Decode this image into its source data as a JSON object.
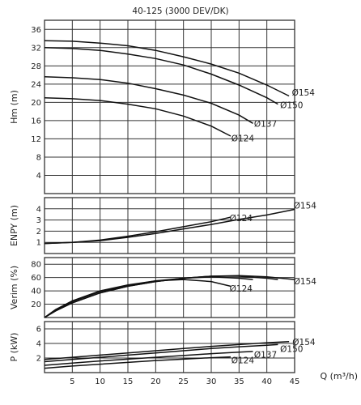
{
  "title": "40-125 (3000 DEV/DK)",
  "chart_data": {
    "type": "line",
    "title": "40-125 (3000 DEV/DK)",
    "xlabel": "Q (m³/h)",
    "xlim": [
      0,
      45
    ],
    "xticks": [
      5,
      10,
      15,
      20,
      25,
      30,
      35,
      40,
      45
    ],
    "grid": true,
    "panels": [
      {
        "id": "hm",
        "ylabel": "Hm (m)",
        "ylim": [
          0,
          38
        ],
        "yticks": [
          4,
          8,
          12,
          16,
          20,
          24,
          28,
          32,
          36
        ],
        "series": [
          {
            "name": "Ø154",
            "x": [
              0,
              5,
              10,
              15,
              20,
              25,
              30,
              35,
              40,
              44
            ],
            "y": [
              33.5,
              33.4,
              33.0,
              32.4,
              31.4,
              30.0,
              28.4,
              26.4,
              23.8,
              21.4
            ]
          },
          {
            "name": "Ø150",
            "x": [
              0,
              5,
              10,
              15,
              20,
              25,
              30,
              35,
              40,
              42
            ],
            "y": [
              32.0,
              31.8,
              31.4,
              30.6,
              29.6,
              28.2,
              26.2,
              23.8,
              21.0,
              19.6
            ]
          },
          {
            "name": "Ø137",
            "x": [
              0,
              5,
              10,
              15,
              20,
              25,
              30,
              35,
              37.5
            ],
            "y": [
              25.6,
              25.4,
              25.0,
              24.2,
              23.0,
              21.6,
              19.8,
              17.2,
              15.4
            ]
          },
          {
            "name": "Ø124",
            "x": [
              0,
              5,
              10,
              15,
              20,
              25,
              30,
              33.5
            ],
            "y": [
              21.0,
              20.8,
              20.4,
              19.6,
              18.6,
              17.0,
              14.8,
              12.6
            ]
          }
        ],
        "labels": [
          {
            "text": "Ø154",
            "x": 44.5,
            "y": 22.2
          },
          {
            "text": "Ø150",
            "x": 42.4,
            "y": 19.4
          },
          {
            "text": "Ø137",
            "x": 37.7,
            "y": 15.4
          },
          {
            "text": "Ø124",
            "x": 33.6,
            "y": 12.2
          }
        ]
      },
      {
        "id": "enpy",
        "ylabel": "ENPY (m)",
        "ylim": [
          0,
          5
        ],
        "yticks": [
          1,
          2,
          3,
          4
        ],
        "series": [
          {
            "name": "Ø154",
            "x": [
              0,
              5,
              10,
              15,
              20,
              25,
              30,
              35,
              40,
              45
            ],
            "y": [
              0.9,
              1.0,
              1.15,
              1.45,
              1.8,
              2.2,
              2.6,
              3.05,
              3.45,
              3.95
            ]
          },
          {
            "name": "Ø124",
            "x": [
              0,
              5,
              10,
              15,
              20,
              25,
              30,
              33.5
            ],
            "y": [
              0.9,
              1.0,
              1.2,
              1.55,
              1.95,
              2.4,
              2.85,
              3.25
            ]
          }
        ],
        "labels": [
          {
            "text": "Ø154",
            "x": 44.8,
            "y": 4.3
          },
          {
            "text": "Ø124",
            "x": 33.3,
            "y": 3.2
          }
        ]
      },
      {
        "id": "verim",
        "ylabel": "Verim (%)",
        "ylim": [
          0,
          90
        ],
        "yticks": [
          20,
          40,
          60,
          80
        ],
        "series": [
          {
            "name": "Ø154",
            "x": [
              0,
              2,
              5,
              10,
              15,
              20,
              25,
              30,
              35,
              40,
              45
            ],
            "y": [
              0,
              10,
              22,
              37,
              47,
              54,
              59,
              62,
              63,
              61,
              57
            ]
          },
          {
            "name": "Ø150",
            "x": [
              0,
              2,
              5,
              10,
              15,
              20,
              25,
              30,
              35,
              40,
              42
            ],
            "y": [
              0,
              10,
              22,
              37,
              47,
              54,
              59,
              62,
              62,
              59,
              57
            ]
          },
          {
            "name": "Ø137",
            "x": [
              0,
              2,
              5,
              10,
              15,
              20,
              25,
              30,
              35,
              37.5
            ],
            "y": [
              0,
              11,
              24,
              39,
              48,
              55,
              59,
              61,
              59,
              57
            ]
          },
          {
            "name": "Ø124",
            "x": [
              0,
              2,
              5,
              10,
              15,
              20,
              25,
              30,
              33.5
            ],
            "y": [
              0,
              12,
              25,
              40,
              49,
              55,
              57,
              54,
              47
            ]
          }
        ],
        "labels": [
          {
            "text": "Ø154",
            "x": 44.8,
            "y": 55
          },
          {
            "text": "Ø124",
            "x": 33.3,
            "y": 44
          }
        ]
      },
      {
        "id": "power",
        "ylabel": "P (kW)",
        "ylim": [
          0,
          7
        ],
        "yticks": [
          2,
          4,
          6
        ],
        "series": [
          {
            "name": "Ø154",
            "x": [
              0,
              5,
              10,
              15,
              20,
              25,
              30,
              35,
              40,
              44
            ],
            "y": [
              1.8,
              2.1,
              2.4,
              2.7,
              3.0,
              3.3,
              3.6,
              3.85,
              4.1,
              4.25
            ]
          },
          {
            "name": "Ø150",
            "x": [
              0,
              5,
              10,
              15,
              20,
              25,
              30,
              35,
              40,
              42
            ],
            "y": [
              1.5,
              1.8,
              2.1,
              2.4,
              2.7,
              3.0,
              3.3,
              3.55,
              3.75,
              3.85
            ]
          },
          {
            "name": "Ø137",
            "x": [
              0,
              5,
              10,
              15,
              20,
              25,
              30,
              35,
              37.5
            ],
            "y": [
              1.0,
              1.3,
              1.6,
              1.85,
              2.1,
              2.35,
              2.6,
              2.8,
              2.9
            ]
          },
          {
            "name": "Ø124",
            "x": [
              0,
              5,
              10,
              15,
              20,
              25,
              30,
              33.5
            ],
            "y": [
              0.6,
              0.9,
              1.15,
              1.4,
              1.65,
              1.85,
              2.05,
              2.15
            ]
          }
        ],
        "labels": [
          {
            "text": "Ø154",
            "x": 44.6,
            "y": 4.25
          },
          {
            "text": "Ø150",
            "x": 42.4,
            "y": 3.3
          },
          {
            "text": "Ø137",
            "x": 37.7,
            "y": 2.5
          },
          {
            "text": "Ø124",
            "x": 33.6,
            "y": 1.7
          }
        ]
      }
    ]
  }
}
